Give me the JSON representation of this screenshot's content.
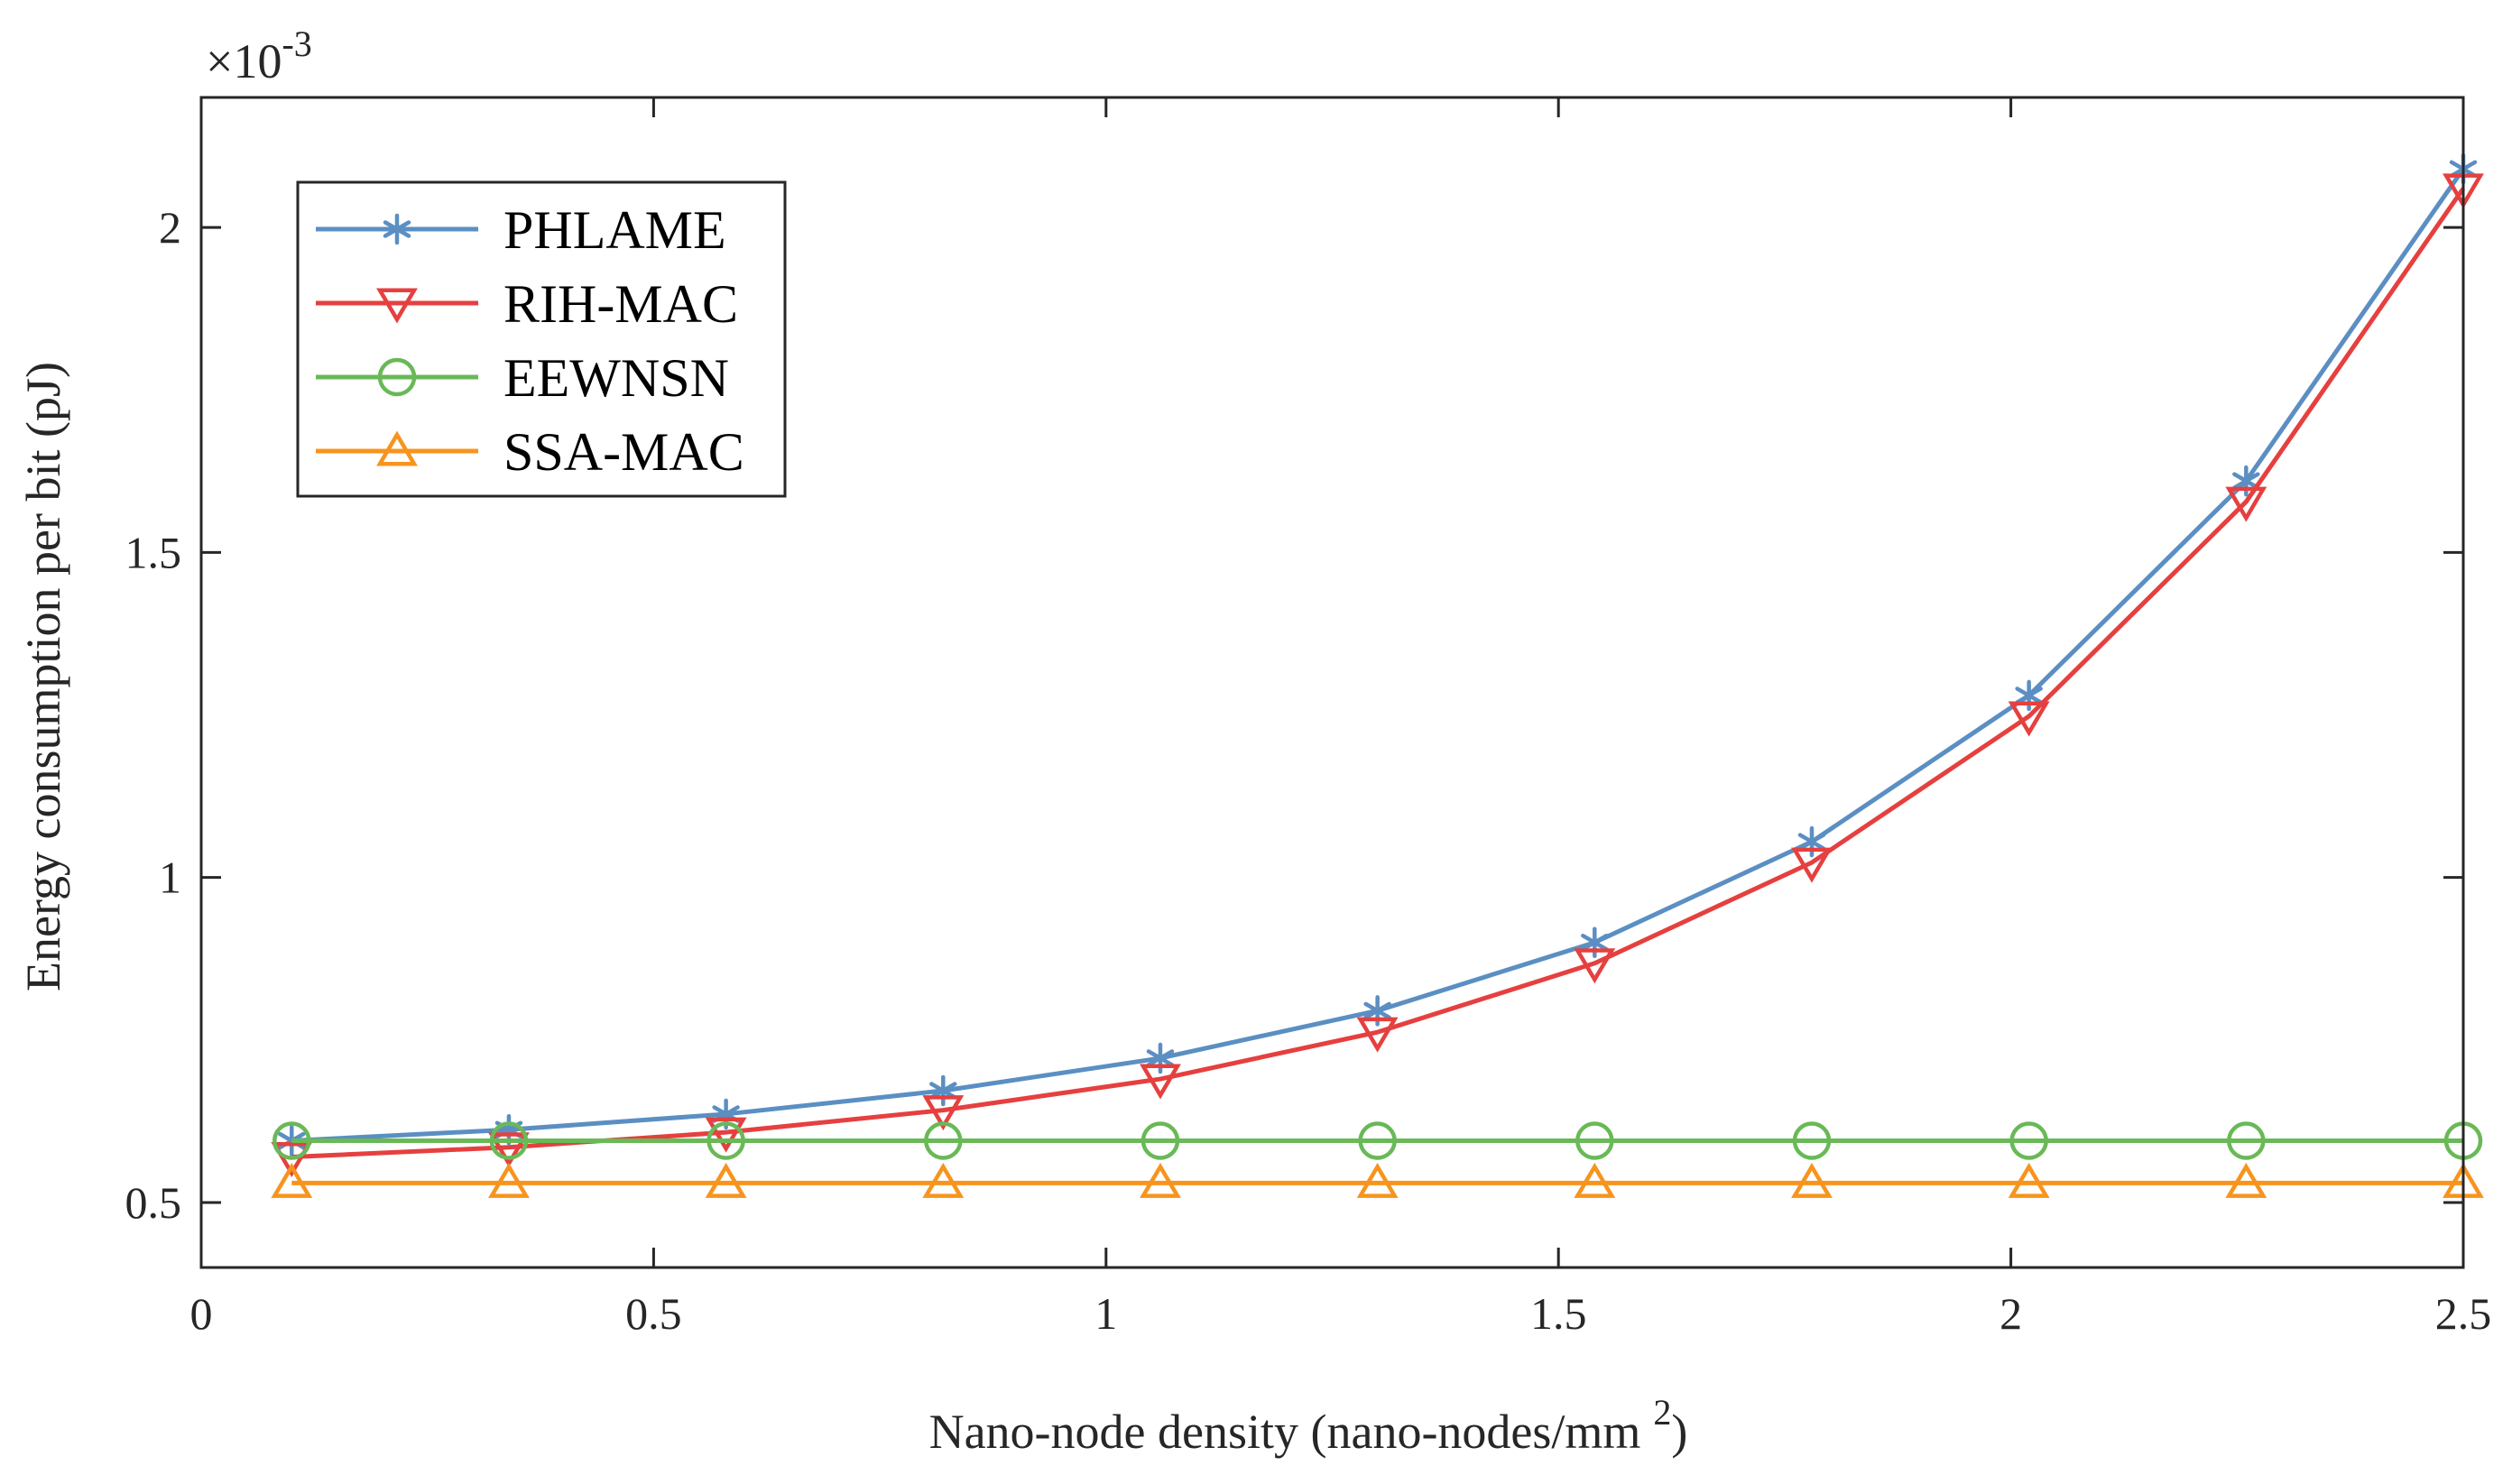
{
  "chart_data": {
    "type": "line",
    "title": "",
    "xlabel": "Nano-node density (nano-nodes/mm",
    "xlabel_superscript": "2",
    "xlabel_suffix": ")",
    "ylabel": "Energy consumption per bit (pJ)",
    "y_exponent_base": "×10",
    "y_exponent_power": "-3",
    "xlim": [
      0,
      2.5
    ],
    "ylim": [
      0.4,
      2.2
    ],
    "xticks": [
      0,
      0.5,
      1,
      1.5,
      2,
      2.5
    ],
    "xtick_labels": [
      "0",
      "0.5",
      "1",
      "1.5",
      "2",
      "2.5"
    ],
    "yticks": [
      0.5,
      1,
      1.5,
      2
    ],
    "ytick_labels": [
      "0.5",
      "1",
      "1.5",
      "2"
    ],
    "legend_position": "top-left",
    "x": [
      0.1,
      0.34,
      0.58,
      0.82,
      1.06,
      1.3,
      1.54,
      1.78,
      2.02,
      2.26,
      2.5
    ],
    "series": [
      {
        "name": "PHLAME",
        "color": "#5b8fc3",
        "marker": "asterisk",
        "values": [
          0.595,
          0.612,
          0.636,
          0.672,
          0.722,
          0.795,
          0.9,
          1.055,
          1.28,
          1.61,
          2.09
        ]
      },
      {
        "name": "RIH-MAC",
        "color": "#e5403f",
        "marker": "triangle-down",
        "values": [
          0.57,
          0.585,
          0.608,
          0.642,
          0.69,
          0.762,
          0.868,
          1.023,
          1.248,
          1.578,
          2.06
        ]
      },
      {
        "name": "EEWNSN",
        "color": "#69b957",
        "marker": "circle",
        "values": [
          0.595,
          0.595,
          0.595,
          0.595,
          0.595,
          0.595,
          0.595,
          0.595,
          0.595,
          0.595,
          0.595
        ]
      },
      {
        "name": "SSA-MAC",
        "color": "#f7941d",
        "marker": "triangle-up",
        "values": [
          0.53,
          0.53,
          0.53,
          0.53,
          0.53,
          0.53,
          0.53,
          0.53,
          0.53,
          0.53,
          0.53
        ]
      }
    ]
  }
}
